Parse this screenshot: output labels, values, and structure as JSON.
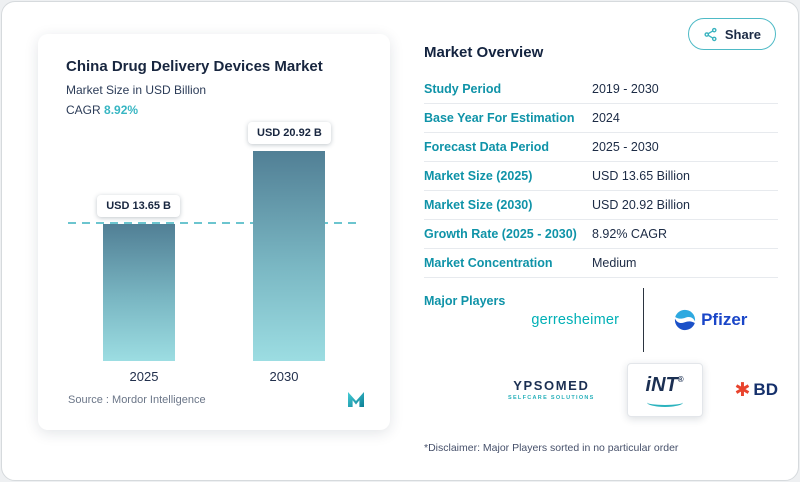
{
  "page": {
    "share_label": "Share",
    "disclaimer": "*Disclaimer: Major Players sorted in no particular order"
  },
  "chart": {
    "title": "China Drug Delivery Devices Market",
    "subtitle": "Market Size in USD Billion",
    "cagr_label": "CAGR",
    "cagr_value": "8.92%",
    "source_label": "Source :",
    "source_name": "Mordor Intelligence"
  },
  "chart_data": {
    "type": "bar",
    "title": "China Drug Delivery Devices Market",
    "subtitle": "Market Size in USD Billion",
    "categories": [
      "2025",
      "2030"
    ],
    "values": [
      13.65,
      20.92
    ],
    "bar_labels": [
      "USD 13.65 B",
      "USD 20.92 B"
    ],
    "unit": "USD Billion",
    "cagr": "8.92%",
    "ylim": [
      0,
      22
    ],
    "dashline_at": 13.65,
    "legend": "off",
    "grid": "off",
    "bar_gradient": [
      "#517f95",
      "#9cdde2"
    ]
  },
  "overview": {
    "title": "Market Overview",
    "rows": [
      {
        "label": "Study Period",
        "value": "2019 - 2030"
      },
      {
        "label": "Base Year For Estimation",
        "value": "2024"
      },
      {
        "label": "Forecast Data Period",
        "value": "2025 - 2030"
      },
      {
        "label": "Market Size (2025)",
        "value": "USD 13.65 Billion"
      },
      {
        "label": "Market Size (2030)",
        "value": "USD 20.92 Billion"
      },
      {
        "label": "Growth Rate (2025 - 2030)",
        "value": "8.92% CAGR"
      },
      {
        "label": "Market Concentration",
        "value": "Medium"
      }
    ],
    "major_players_label": "Major Players",
    "players": {
      "gerresheimer": "gerresheimer",
      "pfizer": "Pfizer",
      "ypsomed": "YPSOMED",
      "ypsomed_tagline": "SELFCARE SOLUTIONS",
      "int_name": "iNT",
      "int_reg": "®",
      "bd": "BD"
    }
  },
  "colors": {
    "accent_teal": "#0f93a8",
    "cagr_teal": "#38b6c3",
    "navy": "#1c2b45",
    "bar_top": "#517f95",
    "bar_bottom": "#9cdde2",
    "bd_red": "#e8432d",
    "pfizer_blue": "#1a46c8"
  }
}
